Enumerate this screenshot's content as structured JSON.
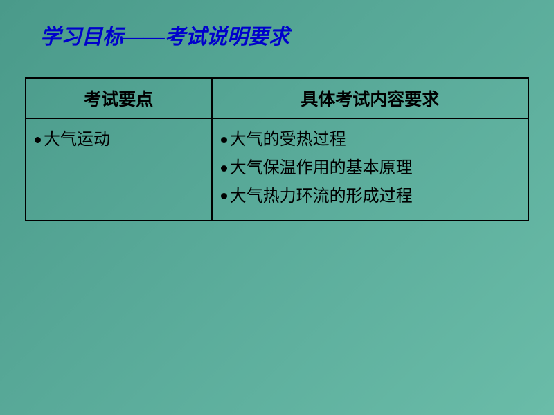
{
  "title": "学习目标——考试说明要求",
  "title_fontsize": 30,
  "table": {
    "header_fontsize": 25,
    "cell_fontsize": 24,
    "columns": [
      "考试要点",
      "具体考试内容要求"
    ],
    "rows": [
      {
        "left": [
          "大气运动"
        ],
        "right": [
          "大气的受热过程",
          "大气保温作用的基本原理",
          "大气热力环流的形成过程"
        ]
      }
    ]
  },
  "colors": {
    "title_color": "#0000cc",
    "text_color": "#000000",
    "border_color": "#000000",
    "bg_gradient_start": "#4a9a8a",
    "bg_gradient_end": "#6abca8"
  }
}
